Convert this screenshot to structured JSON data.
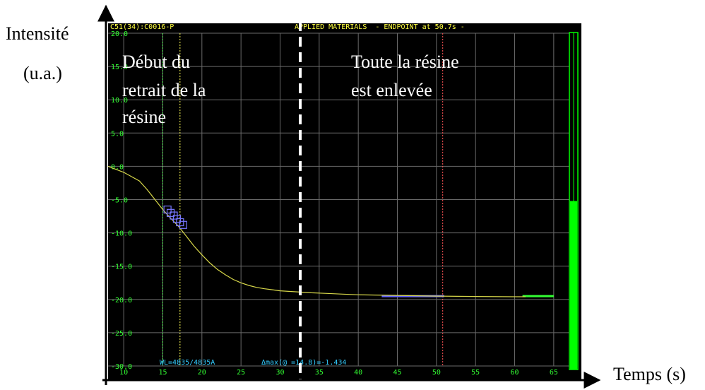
{
  "outer": {
    "y_label_line1": "Intensité",
    "y_label_line2": "(u.a.)",
    "x_label": "Temps (s)"
  },
  "screen": {
    "header_left": "C51(34):C0016-P",
    "header_right": "APPLIED MATERIALS  - ENDPOINT at 50.7s -",
    "footer_wl": "WL=4835/4835A",
    "footer_amax": "Δmax(@ =14.8)=-1.434"
  },
  "annotations": {
    "start_line1": "Début du",
    "start_line2": "retrait de la",
    "start_line3": "résine",
    "end_line1": "Toute la résine",
    "end_line2": "est enlevée"
  },
  "chart_data": {
    "type": "line",
    "xlim": [
      8,
      67
    ],
    "ylim": [
      -30,
      20
    ],
    "x_ticks": [
      10,
      15,
      20,
      25,
      30,
      35,
      40,
      45,
      50,
      55,
      60,
      65
    ],
    "y_ticks": [
      20,
      15,
      10,
      5,
      0,
      -5,
      -10,
      -15,
      -20,
      -25,
      -30
    ],
    "y_tick_labels": [
      "20.0",
      "15.0",
      "10.0",
      "5.0",
      "0.0",
      "-5.0",
      "-10.0",
      "-15.0",
      "-20.0",
      "-25.0",
      "-30.0"
    ],
    "grid": true,
    "series": [
      {
        "x": [
          8,
          10,
          12,
          13,
          14,
          15,
          16,
          17,
          18,
          19,
          20,
          21,
          22,
          23,
          24,
          25,
          26,
          27,
          28,
          29,
          30,
          32,
          34,
          36,
          38,
          40,
          45,
          50,
          55,
          60,
          61.4
        ],
        "y": [
          0,
          -0.9,
          -2.2,
          -3.5,
          -5.0,
          -6.5,
          -7.8,
          -9.0,
          -10.5,
          -12.0,
          -13.3,
          -14.5,
          -15.5,
          -16.3,
          -17.0,
          -17.5,
          -17.9,
          -18.2,
          -18.4,
          -18.55,
          -18.7,
          -18.85,
          -19.0,
          -19.1,
          -19.2,
          -19.3,
          -19.4,
          -19.5,
          -19.55,
          -19.6,
          -19.6
        ],
        "color": "#d8d84a"
      }
    ],
    "endpoint_x": 50.7,
    "markers": {
      "start_x": 15,
      "start2_x": 17.2,
      "end_x": 50.8,
      "dashed_x": 30
    },
    "squares": [
      [
        15.6,
        -6.5
      ],
      [
        16.0,
        -7.0
      ],
      [
        16.4,
        -7.4
      ],
      [
        16.8,
        -7.9
      ],
      [
        17.2,
        -8.4
      ],
      [
        17.6,
        -8.8
      ]
    ],
    "blue_segment": [
      43,
      51
    ],
    "blue_segment_y": -19.5,
    "bright_segment": [
      61,
      65
    ],
    "bright_segment_y": -19.5,
    "progress_bar_fraction": 0.5
  }
}
